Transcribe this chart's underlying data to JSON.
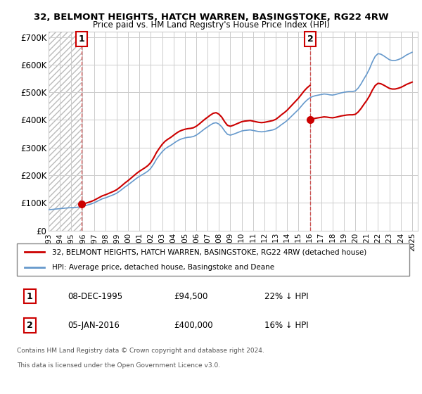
{
  "title1": "32, BELMONT HEIGHTS, HATCH WARREN, BASINGSTOKE, RG22 4RW",
  "title2": "Price paid vs. HM Land Registry's House Price Index (HPI)",
  "xlim": [
    1993,
    2025.5
  ],
  "ylim": [
    0,
    720000
  ],
  "yticks": [
    0,
    100000,
    200000,
    300000,
    400000,
    500000,
    600000,
    700000
  ],
  "ytick_labels": [
    "£0",
    "£100K",
    "£200K",
    "£300K",
    "£400K",
    "£500K",
    "£600K",
    "£700K"
  ],
  "xticks": [
    1993,
    1994,
    1995,
    1996,
    1997,
    1998,
    1999,
    2000,
    2001,
    2002,
    2003,
    2004,
    2005,
    2006,
    2007,
    2008,
    2009,
    2010,
    2011,
    2012,
    2013,
    2014,
    2015,
    2016,
    2017,
    2018,
    2019,
    2020,
    2021,
    2022,
    2023,
    2024,
    2025
  ],
  "hpi_color": "#6699cc",
  "price_color": "#cc0000",
  "sale1_x": 1995.93,
  "sale1_y": 94500,
  "sale2_x": 2016.03,
  "sale2_y": 400000,
  "annotation1_label": "1",
  "annotation2_label": "2",
  "legend_line1": "32, BELMONT HEIGHTS, HATCH WARREN, BASINGSTOKE, RG22 4RW (detached house)",
  "legend_line2": "HPI: Average price, detached house, Basingstoke and Deane",
  "footer1": "Contains HM Land Registry data © Crown copyright and database right 2024.",
  "footer2": "This data is licensed under the Open Government Licence v3.0.",
  "table_row1": [
    "1",
    "08-DEC-1995",
    "£94,500",
    "22% ↓ HPI"
  ],
  "table_row2": [
    "2",
    "05-JAN-2016",
    "£400,000",
    "16% ↓ HPI"
  ],
  "hatch_color": "#dddddd",
  "bg_color": "#ffffff",
  "grid_color": "#cccccc"
}
